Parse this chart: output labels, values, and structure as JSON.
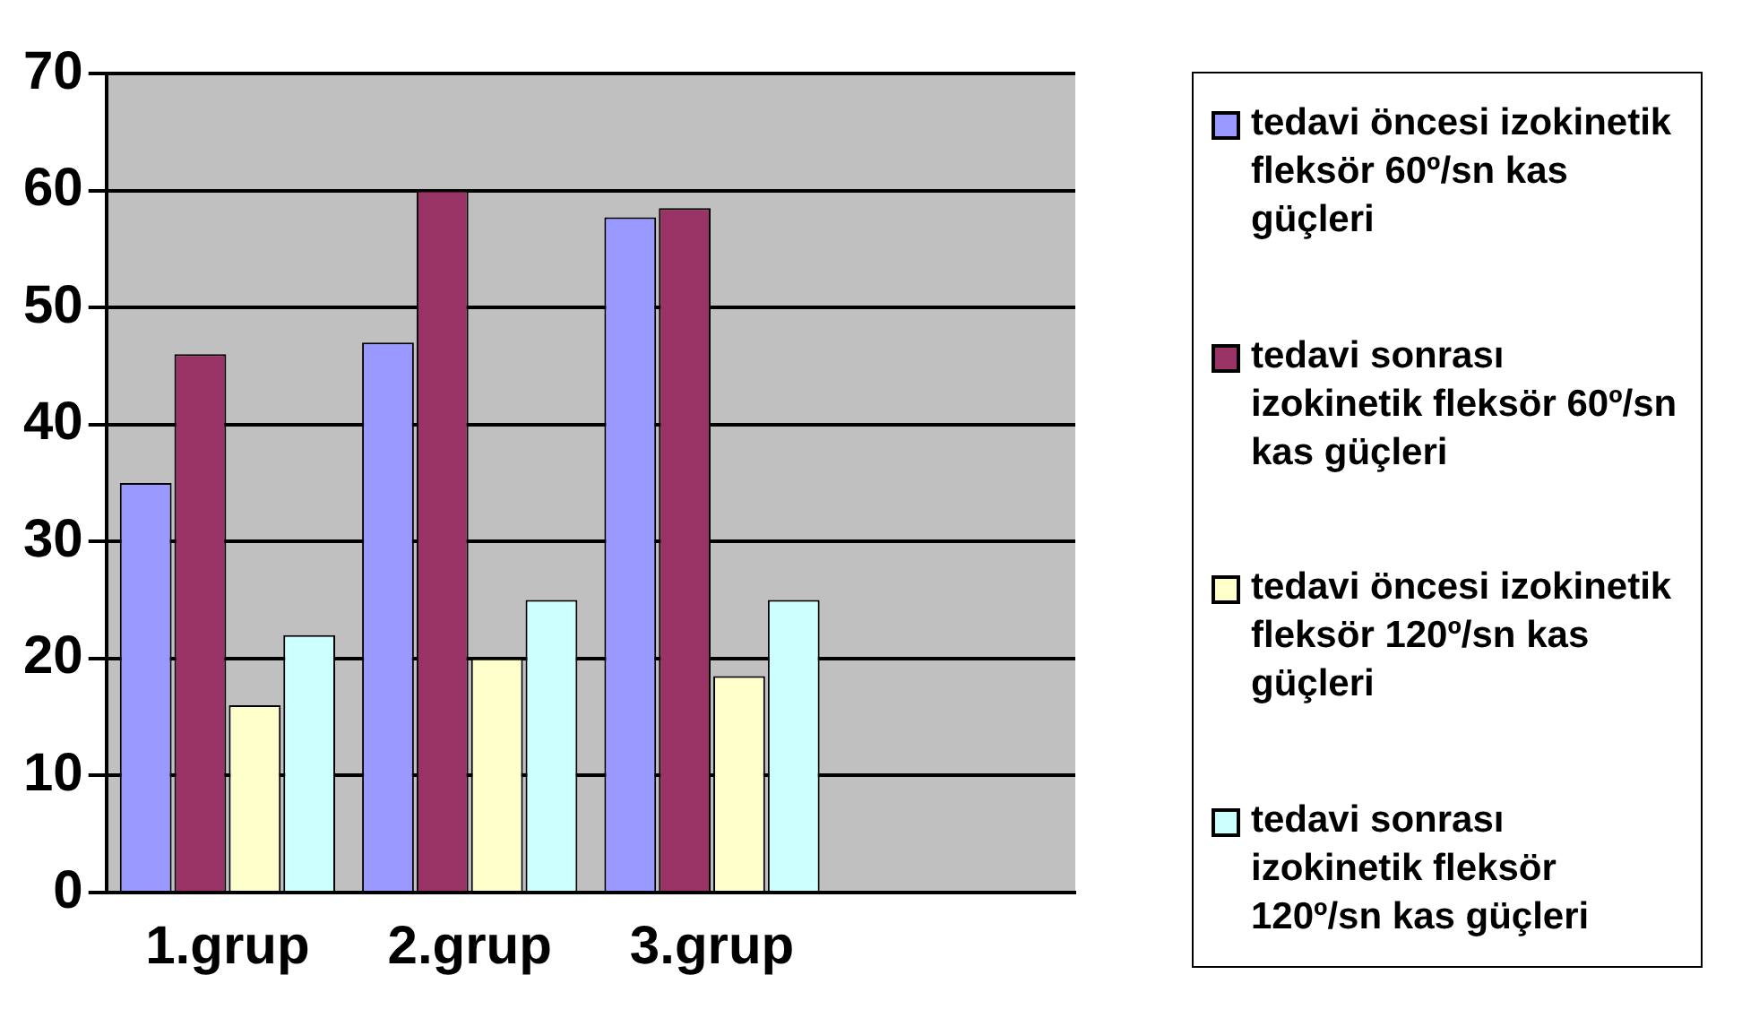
{
  "chart_data": {
    "type": "bar",
    "categories": [
      "1.grup",
      "2.grup",
      "3.grup",
      null
    ],
    "series": [
      {
        "name": "tedavi öncesi izokinetik fleksör 60º/sn kas güçleri",
        "color": "#9999ff",
        "values": [
          35,
          47,
          57.7,
          null
        ]
      },
      {
        "name": "tedavi sonrası izokinetik fleksör 60º/sn kas güçleri",
        "color": "#993366",
        "values": [
          46,
          60,
          58.5,
          null
        ]
      },
      {
        "name": "tedavi öncesi izokinetik fleksör 120º/sn kas güçleri",
        "color": "#ffffcc",
        "values": [
          16,
          20,
          18.5,
          null
        ]
      },
      {
        "name": "tedavi sonrası izokinetik fleksör 120º/sn kas güçleri",
        "color": "#ccffff",
        "values": [
          22,
          25,
          25,
          null
        ]
      }
    ],
    "ylim": [
      0,
      70
    ],
    "yticks": [
      0,
      10,
      20,
      30,
      40,
      50,
      60,
      70
    ],
    "grid": "y",
    "legend": "right"
  }
}
